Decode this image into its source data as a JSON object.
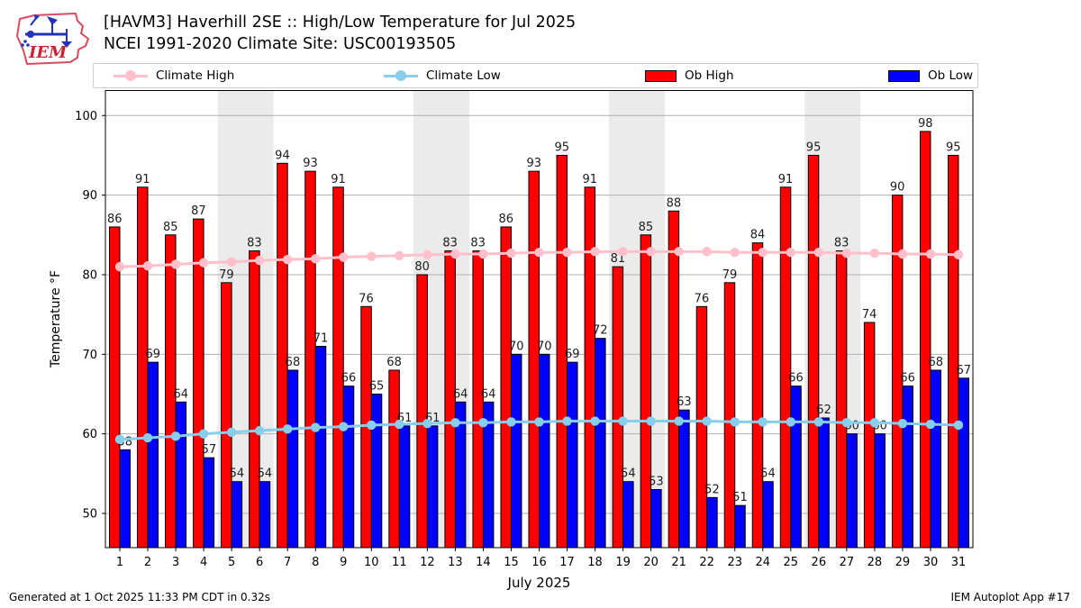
{
  "header": {
    "title_line1": "[HAVM3] Haverhill 2SE :: High/Low Temperature for Jul 2025",
    "title_line2": "NCEI 1991-2020 Climate Site: USC00193505",
    "logo_text": "IEM"
  },
  "legend": {
    "items": [
      {
        "label": "Climate High",
        "marker": "line",
        "color": "#ffc0cb"
      },
      {
        "label": "Climate Low",
        "marker": "line",
        "color": "#87ceeb"
      },
      {
        "label": "Ob High",
        "marker": "patch",
        "color": "#ff0000"
      },
      {
        "label": "Ob Low",
        "marker": "patch",
        "color": "#0000ff"
      }
    ]
  },
  "footer": {
    "left": "Generated at 1 Oct 2025 11:33 PM CDT in 0.32s",
    "right": "IEM Autoplot App #17"
  },
  "colors": {
    "ob_high": "#ff0000",
    "ob_low": "#0000ff",
    "climate_high": "#ffc0cb",
    "climate_low": "#87ceeb",
    "weekend_band": "#ebebeb",
    "gridline": "#b0b0b0",
    "spine": "#000000"
  },
  "chart_data": {
    "type": "bar",
    "title": "[HAVM3] Haverhill 2SE :: High/Low Temperature for Jul 2025",
    "subtitle": "NCEI 1991-2020 Climate Site: USC00193505",
    "xlabel": "July 2025",
    "ylabel": "Temperature °F",
    "ylim": [
      45.7,
      103.2
    ],
    "yticks": [
      50,
      60,
      70,
      80,
      90,
      100
    ],
    "grid": "horizontal",
    "legend_position": "top",
    "weekend_shading_days": [
      [
        5,
        6
      ],
      [
        12,
        13
      ],
      [
        19,
        20
      ],
      [
        26,
        27
      ]
    ],
    "x": [
      1,
      2,
      3,
      4,
      5,
      6,
      7,
      8,
      9,
      10,
      11,
      12,
      13,
      14,
      15,
      16,
      17,
      18,
      19,
      20,
      21,
      22,
      23,
      24,
      25,
      26,
      27,
      28,
      29,
      30,
      31
    ],
    "series": [
      {
        "name": "Ob High",
        "type": "bar",
        "color": "#ff0000",
        "values": [
          86,
          91,
          85,
          87,
          79,
          83,
          94,
          93,
          91,
          76,
          68,
          80,
          83,
          83,
          86,
          93,
          95,
          91,
          81,
          85,
          88,
          76,
          79,
          84,
          91,
          95,
          83,
          74,
          90,
          98,
          95
        ]
      },
      {
        "name": "Ob Low",
        "type": "bar",
        "color": "#0000ff",
        "values": [
          58,
          69,
          64,
          57,
          54,
          54,
          68,
          71,
          66,
          65,
          61,
          61,
          64,
          64,
          70,
          70,
          69,
          72,
          54,
          53,
          63,
          52,
          51,
          54,
          66,
          62,
          60,
          60,
          66,
          68,
          67
        ]
      },
      {
        "name": "Climate High",
        "type": "line",
        "color": "#ffc0cb",
        "values": [
          81.0,
          81.1,
          81.3,
          81.5,
          81.6,
          81.8,
          81.9,
          82.0,
          82.2,
          82.3,
          82.4,
          82.5,
          82.6,
          82.6,
          82.7,
          82.8,
          82.8,
          82.9,
          82.9,
          82.9,
          82.9,
          82.9,
          82.8,
          82.8,
          82.8,
          82.8,
          82.7,
          82.7,
          82.6,
          82.6,
          82.5
        ]
      },
      {
        "name": "Climate Low",
        "type": "line",
        "color": "#87ceeb",
        "values": [
          59.3,
          59.5,
          59.7,
          60.0,
          60.2,
          60.4,
          60.6,
          60.8,
          60.9,
          61.1,
          61.2,
          61.3,
          61.4,
          61.4,
          61.5,
          61.5,
          61.6,
          61.6,
          61.6,
          61.6,
          61.6,
          61.6,
          61.5,
          61.5,
          61.5,
          61.5,
          61.4,
          61.4,
          61.3,
          61.2,
          61.1
        ]
      }
    ]
  }
}
